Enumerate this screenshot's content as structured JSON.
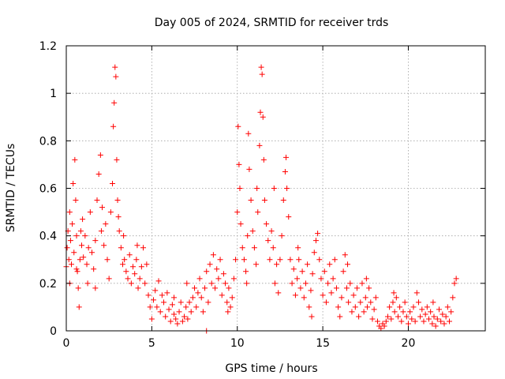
{
  "chart_data": {
    "type": "scatter",
    "title": "Day 005 of 2024, SRMTID for receiver trds",
    "xlabel": "GPS time / hours",
    "ylabel": "SRMTID / TECUs",
    "xlim": [
      0,
      24.5
    ],
    "ylim": [
      0,
      1.2
    ],
    "xticks": [
      0,
      5,
      10,
      15,
      20
    ],
    "xtick_labels": [
      "0",
      "5",
      "10",
      "15",
      "20"
    ],
    "yticks": [
      0,
      0.2,
      0.4,
      0.6,
      0.8,
      1,
      1.2
    ],
    "ytick_labels": [
      "0",
      "0.2",
      "0.4",
      "0.6",
      "0.8",
      "1",
      "1.2"
    ],
    "grid": true,
    "marker": "+",
    "color": "#ff0000",
    "series": [
      {
        "name": "SRMTID",
        "points": [
          [
            0.0,
            0.27
          ],
          [
            0.05,
            0.35
          ],
          [
            0.1,
            0.42
          ],
          [
            0.15,
            0.3
          ],
          [
            0.2,
            0.5
          ],
          [
            0.25,
            0.38
          ],
          [
            0.3,
            0.28
          ],
          [
            0.35,
            0.45
          ],
          [
            0.4,
            0.62
          ],
          [
            0.45,
            0.33
          ],
          [
            0.5,
            0.72
          ],
          [
            0.55,
            0.55
          ],
          [
            0.6,
            0.4
          ],
          [
            0.65,
            0.25
          ],
          [
            0.7,
            0.18
          ],
          [
            0.75,
            0.1
          ],
          [
            0.8,
            0.3
          ],
          [
            0.85,
            0.42
          ],
          [
            0.9,
            0.36
          ],
          [
            0.95,
            0.47
          ],
          [
            1.0,
            0.31
          ],
          [
            1.1,
            0.4
          ],
          [
            1.2,
            0.28
          ],
          [
            1.3,
            0.35
          ],
          [
            1.4,
            0.5
          ],
          [
            1.5,
            0.33
          ],
          [
            1.6,
            0.26
          ],
          [
            1.7,
            0.38
          ],
          [
            1.8,
            0.55
          ],
          [
            1.9,
            0.66
          ],
          [
            2.0,
            0.74
          ],
          [
            2.05,
            0.42
          ],
          [
            2.1,
            0.52
          ],
          [
            2.2,
            0.36
          ],
          [
            2.3,
            0.45
          ],
          [
            2.4,
            0.3
          ],
          [
            2.5,
            0.22
          ],
          [
            2.6,
            0.5
          ],
          [
            2.7,
            0.62
          ],
          [
            2.75,
            0.86
          ],
          [
            2.8,
            0.96
          ],
          [
            2.85,
            1.11
          ],
          [
            2.9,
            1.07
          ],
          [
            2.95,
            0.72
          ],
          [
            3.0,
            0.55
          ],
          [
            3.05,
            0.48
          ],
          [
            3.1,
            0.42
          ],
          [
            3.2,
            0.35
          ],
          [
            3.3,
            0.28
          ],
          [
            3.4,
            0.3
          ],
          [
            3.5,
            0.25
          ],
          [
            3.6,
            0.22
          ],
          [
            3.7,
            0.32
          ],
          [
            3.8,
            0.2
          ],
          [
            3.9,
            0.27
          ],
          [
            4.0,
            0.24
          ],
          [
            4.1,
            0.3
          ],
          [
            4.2,
            0.18
          ],
          [
            4.3,
            0.22
          ],
          [
            4.4,
            0.27
          ],
          [
            4.5,
            0.35
          ],
          [
            4.6,
            0.2
          ],
          [
            4.7,
            0.28
          ],
          [
            4.8,
            0.15
          ],
          [
            4.9,
            0.1
          ],
          [
            5.0,
            0.05
          ],
          [
            5.1,
            0.13
          ],
          [
            5.2,
            0.17
          ],
          [
            5.3,
            0.1
          ],
          [
            5.4,
            0.21
          ],
          [
            5.5,
            0.08
          ],
          [
            5.6,
            0.15
          ],
          [
            5.7,
            0.12
          ],
          [
            5.8,
            0.06
          ],
          [
            5.9,
            0.16
          ],
          [
            6.0,
            0.09
          ],
          [
            6.1,
            0.04
          ],
          [
            6.2,
            0.11
          ],
          [
            6.3,
            0.07
          ],
          [
            6.4,
            0.05
          ],
          [
            6.5,
            0.03
          ],
          [
            6.6,
            0.08
          ],
          [
            6.7,
            0.12
          ],
          [
            6.8,
            0.04
          ],
          [
            6.9,
            0.06
          ],
          [
            7.0,
            0.1
          ],
          [
            7.1,
            0.05
          ],
          [
            7.2,
            0.12
          ],
          [
            7.3,
            0.08
          ],
          [
            7.4,
            0.14
          ],
          [
            7.5,
            0.18
          ],
          [
            7.6,
            0.1
          ],
          [
            7.7,
            0.16
          ],
          [
            7.8,
            0.22
          ],
          [
            7.9,
            0.14
          ],
          [
            8.0,
            0.08
          ],
          [
            8.1,
            0.18
          ],
          [
            8.2,
            0.25
          ],
          [
            8.3,
            0.12
          ],
          [
            8.4,
            0.28
          ],
          [
            8.5,
            0.2
          ],
          [
            8.6,
            0.32
          ],
          [
            8.7,
            0.18
          ],
          [
            8.8,
            0.26
          ],
          [
            8.9,
            0.22
          ],
          [
            9.0,
            0.3
          ],
          [
            9.1,
            0.15
          ],
          [
            9.2,
            0.24
          ],
          [
            9.3,
            0.2
          ],
          [
            9.4,
            0.12
          ],
          [
            9.5,
            0.18
          ],
          [
            9.6,
            0.1
          ],
          [
            9.7,
            0.14
          ],
          [
            9.8,
            0.22
          ],
          [
            9.9,
            0.3
          ],
          [
            10.0,
            0.5
          ],
          [
            10.05,
            0.86
          ],
          [
            10.1,
            0.7
          ],
          [
            10.15,
            0.6
          ],
          [
            10.2,
            0.45
          ],
          [
            10.3,
            0.35
          ],
          [
            10.4,
            0.3
          ],
          [
            10.5,
            0.25
          ],
          [
            10.6,
            0.4
          ],
          [
            10.65,
            0.83
          ],
          [
            10.7,
            0.68
          ],
          [
            10.8,
            0.55
          ],
          [
            10.9,
            0.42
          ],
          [
            11.0,
            0.35
          ],
          [
            11.1,
            0.28
          ],
          [
            11.2,
            0.5
          ],
          [
            11.3,
            0.78
          ],
          [
            11.35,
            0.92
          ],
          [
            11.4,
            1.11
          ],
          [
            11.45,
            1.08
          ],
          [
            11.5,
            0.9
          ],
          [
            11.55,
            0.72
          ],
          [
            11.6,
            0.55
          ],
          [
            11.7,
            0.45
          ],
          [
            11.8,
            0.38
          ],
          [
            11.9,
            0.3
          ],
          [
            12.0,
            0.42
          ],
          [
            12.1,
            0.35
          ],
          [
            12.2,
            0.2
          ],
          [
            12.3,
            0.28
          ],
          [
            12.4,
            0.16
          ],
          [
            12.5,
            0.3
          ],
          [
            12.6,
            0.4
          ],
          [
            12.7,
            0.55
          ],
          [
            12.8,
            0.67
          ],
          [
            12.85,
            0.73
          ],
          [
            12.9,
            0.6
          ],
          [
            13.0,
            0.48
          ],
          [
            13.1,
            0.3
          ],
          [
            13.2,
            0.2
          ],
          [
            13.3,
            0.26
          ],
          [
            13.4,
            0.15
          ],
          [
            13.5,
            0.22
          ],
          [
            13.6,
            0.3
          ],
          [
            13.7,
            0.18
          ],
          [
            13.8,
            0.25
          ],
          [
            13.9,
            0.14
          ],
          [
            14.0,
            0.2
          ],
          [
            14.1,
            0.28
          ],
          [
            14.2,
            0.1
          ],
          [
            14.3,
            0.17
          ],
          [
            14.4,
            0.24
          ],
          [
            14.5,
            0.33
          ],
          [
            14.6,
            0.38
          ],
          [
            14.7,
            0.41
          ],
          [
            14.8,
            0.3
          ],
          [
            14.9,
            0.22
          ],
          [
            15.0,
            0.15
          ],
          [
            15.1,
            0.25
          ],
          [
            15.2,
            0.12
          ],
          [
            15.3,
            0.2
          ],
          [
            15.4,
            0.28
          ],
          [
            15.5,
            0.16
          ],
          [
            15.6,
            0.22
          ],
          [
            15.7,
            0.3
          ],
          [
            15.8,
            0.18
          ],
          [
            15.9,
            0.1
          ],
          [
            16.0,
            0.06
          ],
          [
            16.1,
            0.14
          ],
          [
            16.2,
            0.25
          ],
          [
            16.3,
            0.32
          ],
          [
            16.4,
            0.18
          ],
          [
            16.5,
            0.12
          ],
          [
            16.6,
            0.2
          ],
          [
            16.7,
            0.08
          ],
          [
            16.8,
            0.15
          ],
          [
            16.9,
            0.1
          ],
          [
            17.0,
            0.18
          ],
          [
            17.1,
            0.06
          ],
          [
            17.2,
            0.12
          ],
          [
            17.3,
            0.2
          ],
          [
            17.4,
            0.08
          ],
          [
            17.5,
            0.14
          ],
          [
            17.6,
            0.1
          ],
          [
            17.7,
            0.18
          ],
          [
            17.8,
            0.12
          ],
          [
            17.9,
            0.05
          ],
          [
            18.0,
            0.09
          ],
          [
            18.1,
            0.14
          ],
          [
            18.2,
            0.04
          ],
          [
            18.3,
            0.02
          ],
          [
            18.4,
            0.01
          ],
          [
            18.5,
            0.03
          ],
          [
            18.6,
            0.02
          ],
          [
            18.7,
            0.04
          ],
          [
            18.8,
            0.06
          ],
          [
            18.9,
            0.1
          ],
          [
            19.0,
            0.05
          ],
          [
            19.1,
            0.12
          ],
          [
            19.2,
            0.08
          ],
          [
            19.3,
            0.14
          ],
          [
            19.4,
            0.06
          ],
          [
            19.5,
            0.1
          ],
          [
            19.6,
            0.04
          ],
          [
            19.7,
            0.08
          ],
          [
            19.8,
            0.12
          ],
          [
            19.9,
            0.06
          ],
          [
            20.0,
            0.03
          ],
          [
            20.1,
            0.08
          ],
          [
            20.2,
            0.05
          ],
          [
            20.3,
            0.1
          ],
          [
            20.4,
            0.04
          ],
          [
            20.5,
            0.16
          ],
          [
            20.6,
            0.12
          ],
          [
            20.7,
            0.06
          ],
          [
            20.8,
            0.09
          ],
          [
            20.9,
            0.04
          ],
          [
            21.0,
            0.07
          ],
          [
            21.1,
            0.1
          ],
          [
            21.2,
            0.05
          ],
          [
            21.3,
            0.08
          ],
          [
            21.4,
            0.03
          ],
          [
            21.5,
            0.06
          ],
          [
            21.6,
            0.02
          ],
          [
            21.7,
            0.05
          ],
          [
            21.8,
            0.09
          ],
          [
            21.9,
            0.04
          ],
          [
            22.0,
            0.07
          ],
          [
            22.1,
            0.03
          ],
          [
            22.2,
            0.06
          ],
          [
            22.3,
            0.1
          ],
          [
            22.4,
            0.04
          ],
          [
            22.5,
            0.08
          ],
          [
            22.6,
            0.14
          ],
          [
            22.7,
            0.2
          ],
          [
            22.8,
            0.22
          ],
          [
            8.2,
            0.0
          ],
          [
            0.2,
            0.2
          ],
          [
            0.6,
            0.26
          ],
          [
            1.25,
            0.2
          ],
          [
            1.7,
            0.18
          ],
          [
            3.35,
            0.4
          ],
          [
            4.15,
            0.36
          ],
          [
            6.3,
            0.14
          ],
          [
            7.05,
            0.2
          ],
          [
            9.45,
            0.08
          ],
          [
            10.55,
            0.2
          ],
          [
            11.15,
            0.6
          ],
          [
            12.15,
            0.6
          ],
          [
            13.55,
            0.35
          ],
          [
            14.35,
            0.06
          ],
          [
            16.45,
            0.28
          ],
          [
            17.55,
            0.22
          ],
          [
            19.15,
            0.16
          ],
          [
            21.45,
            0.12
          ]
        ]
      }
    ]
  }
}
